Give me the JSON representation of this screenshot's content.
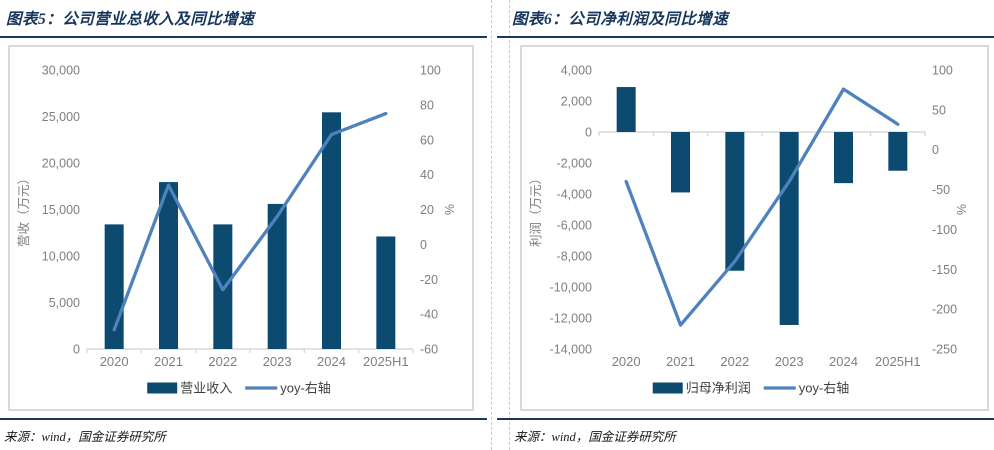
{
  "accent_colors": {
    "title_navy": "#17365d",
    "rule_navy": "#17375e",
    "bar_fill": "#0d4a70",
    "line_blue": "#4f81bd",
    "axis_gray": "#7f7f7f",
    "panel_border": "#d9d9d9"
  },
  "figures": [
    {
      "id": "figure-5",
      "title": "图表5：公司营业总收入及同比增速",
      "source": "来源：wind，国金证券研究所"
    },
    {
      "id": "figure-6",
      "title": "图表6：公司净利润及同比增速",
      "source": "来源：wind，国金证券研究所"
    }
  ],
  "chart_data": [
    {
      "type": "bar",
      "subtype": "bar+line dual-axis combo",
      "title": "公司营业总收入及同比增速",
      "categories": [
        "2020",
        "2021",
        "2022",
        "2023",
        "2024",
        "2025H1"
      ],
      "bar_series": {
        "name": "营业收入",
        "axis": "left",
        "color": "#0d4a70",
        "values": [
          13400,
          17950,
          13400,
          15600,
          25450,
          12100
        ]
      },
      "line_series": {
        "name": "yoy-右轴",
        "axis": "right",
        "color": "#4f81bd",
        "values": [
          -49,
          34,
          -26,
          16,
          63,
          75
        ]
      },
      "left_axis": {
        "label": "营收（万元）",
        "min": 0,
        "max": 30000,
        "tick_labels": [
          "0",
          "5,000",
          "10,000",
          "15,000",
          "20,000",
          "25,000",
          "30,000"
        ]
      },
      "right_axis": {
        "label": "%",
        "min": -60,
        "max": 100,
        "tick_labels": [
          "-60",
          "-40",
          "-20",
          "0",
          "20",
          "40",
          "60",
          "80",
          "100"
        ]
      },
      "legend_position": "bottom",
      "grid": false
    },
    {
      "type": "bar",
      "subtype": "bar+line dual-axis combo",
      "title": "公司净利润及同比增速",
      "categories": [
        "2020",
        "2021",
        "2022",
        "2023",
        "2024",
        "2025H1"
      ],
      "bar_series": {
        "name": "归母净利润",
        "axis": "left",
        "color": "#0d4a70",
        "values": [
          2900,
          -3900,
          -8950,
          -12450,
          -3300,
          -2500
        ]
      },
      "line_series": {
        "name": "yoy-右轴",
        "axis": "right",
        "color": "#4f81bd",
        "values": [
          -40,
          -220,
          -140,
          -40,
          76,
          32
        ]
      },
      "left_axis": {
        "label": "利润（万元）",
        "min": -14000,
        "max": 4000,
        "tick_labels": [
          "-14,000",
          "-12,000",
          "-10,000",
          "-8,000",
          "-6,000",
          "-4,000",
          "-2,000",
          "0",
          "2,000",
          "4,000"
        ]
      },
      "right_axis": {
        "label": "%",
        "min": -250,
        "max": 100,
        "tick_labels": [
          "-250",
          "-200",
          "-150",
          "-100",
          "-50",
          "0",
          "50",
          "100"
        ]
      },
      "legend_position": "bottom",
      "grid": false
    }
  ]
}
